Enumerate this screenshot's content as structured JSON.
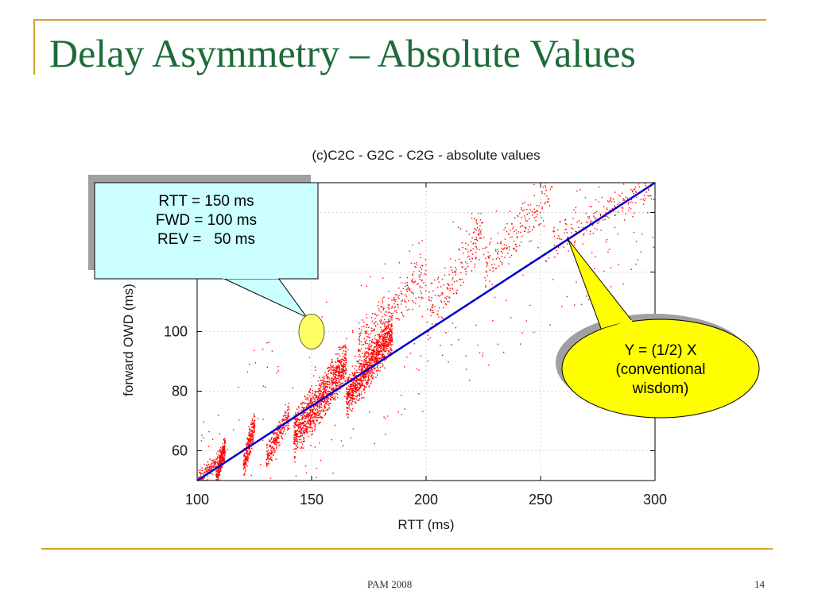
{
  "slide": {
    "title": "Delay Asymmetry – Absolute Values",
    "footer_left": "PAM 2008",
    "page_number": "14"
  },
  "colors": {
    "accent_rule": "#d1a42c",
    "title": "#1e6b3a",
    "points": "#ff0000",
    "reference_line": "#0000cc",
    "callout_left_fill": "#ccffff",
    "callout_right_fill": "#ffff00",
    "highlight_fill": "#ffff66"
  },
  "chart_data": {
    "type": "scatter",
    "title": "(c)C2C - G2C - C2G - absolute values",
    "xlabel": "RTT (ms)",
    "ylabel": "forward OWD (ms)",
    "xlim": [
      100,
      300
    ],
    "ylim": [
      50,
      150
    ],
    "xticks": [
      100,
      150,
      200,
      250,
      300
    ],
    "yticks": [
      60,
      80,
      100
    ],
    "grid": true,
    "series": [
      {
        "type": "scatter",
        "clusters": [
          {
            "x": [
              100,
              112
            ],
            "y": [
              50,
              60
            ],
            "density": "low"
          },
          {
            "x": [
              108,
              112
            ],
            "y": [
              50,
              62
            ],
            "density": "medium"
          },
          {
            "x": [
              120,
              125
            ],
            "y": [
              55,
              70
            ],
            "density": "medium"
          },
          {
            "x": [
              130,
              140
            ],
            "y": [
              58,
              72
            ],
            "density": "medium"
          },
          {
            "x": [
              142,
              165
            ],
            "y": [
              65,
              90
            ],
            "density": "high"
          },
          {
            "x": [
              165,
              185
            ],
            "y": [
              78,
              100
            ],
            "density": "high"
          },
          {
            "x": [
              170,
              200
            ],
            "y": [
              95,
              120
            ],
            "density": "medium"
          },
          {
            "x": [
              200,
              225
            ],
            "y": [
              105,
              135
            ],
            "density": "low"
          },
          {
            "x": [
              225,
              255
            ],
            "y": [
              120,
              148
            ],
            "density": "low"
          },
          {
            "x": [
              255,
              300
            ],
            "y": [
              130,
              150
            ],
            "density": "low"
          },
          {
            "x": [
              100,
              300
            ],
            "y": [
              50,
              150
            ],
            "density": "sparse"
          }
        ]
      },
      {
        "type": "line",
        "x": [
          100,
          300
        ],
        "y": [
          50,
          150
        ]
      }
    ]
  },
  "callouts": {
    "left": {
      "lines": [
        "RTT = 150 ms",
        "FWD = 100 ms",
        "REV =   50 ms"
      ],
      "point": {
        "x": 150,
        "y": 100
      }
    },
    "right": {
      "lines": [
        "Y = (1/2) X",
        "(conventional",
        "wisdom)"
      ],
      "point": {
        "x": 262,
        "y": 131
      }
    }
  }
}
